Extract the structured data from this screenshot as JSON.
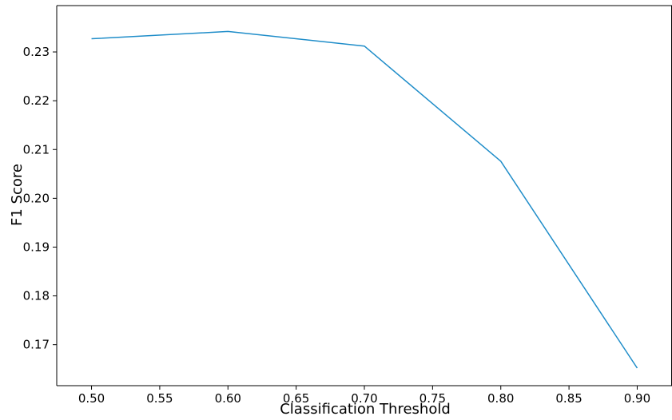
{
  "chart_data": {
    "type": "line",
    "title": "",
    "xlabel": "Classification Threshold",
    "ylabel": "F1 Score",
    "x": [
      0.5,
      0.6,
      0.7,
      0.8,
      0.9
    ],
    "series": [
      {
        "values": [
          0.2327,
          0.2342,
          0.2312,
          0.2076,
          0.1652
        ],
        "color": "#1f8dc9"
      }
    ],
    "xlim": [
      0.4745,
      0.9255
    ],
    "ylim": [
      0.1616,
      0.2395
    ],
    "xticks": [
      0.5,
      0.55,
      0.6,
      0.65,
      0.7,
      0.75,
      0.8,
      0.85,
      0.9
    ],
    "xtick_labels": [
      "0.50",
      "0.55",
      "0.60",
      "0.65",
      "0.70",
      "0.75",
      "0.80",
      "0.85",
      "0.90"
    ],
    "yticks": [
      0.17,
      0.18,
      0.19,
      0.2,
      0.21,
      0.22,
      0.23
    ],
    "ytick_labels": [
      "0.17",
      "0.18",
      "0.19",
      "0.20",
      "0.21",
      "0.22",
      "0.23"
    ],
    "grid": false,
    "legend": "none"
  }
}
